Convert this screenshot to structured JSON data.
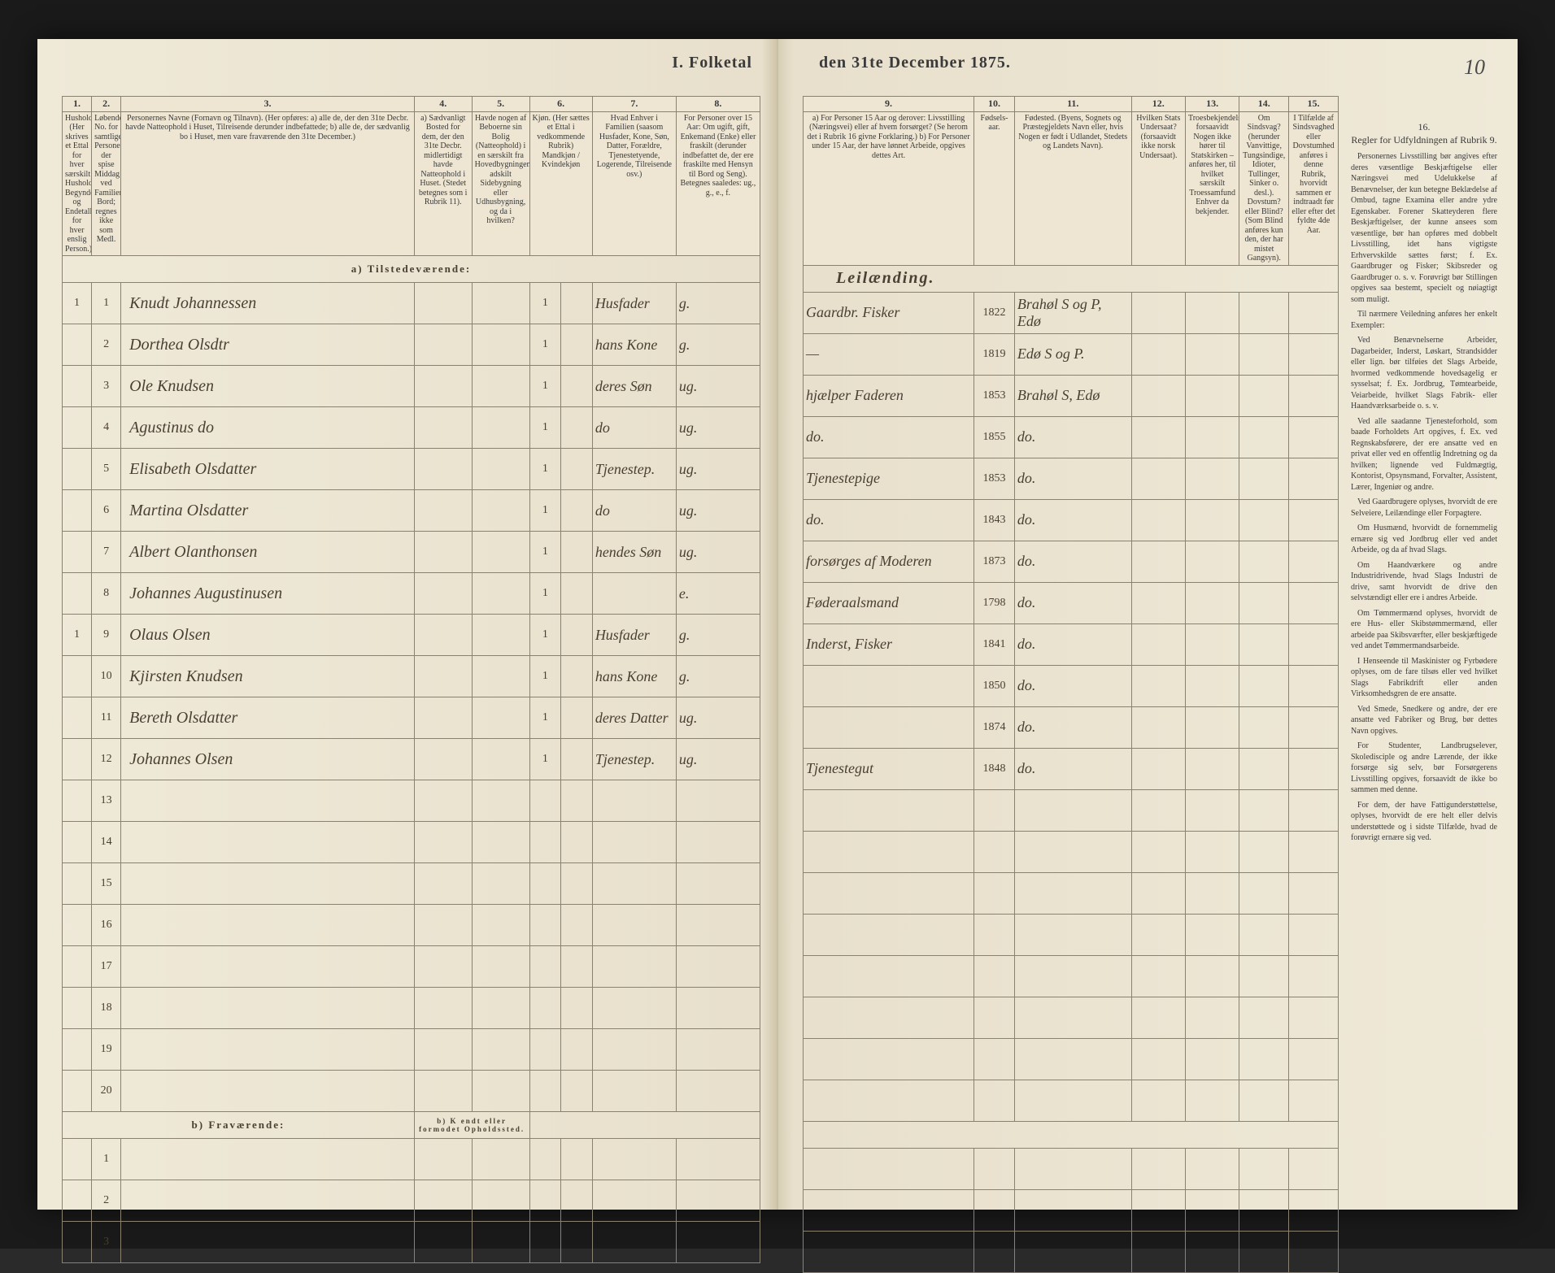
{
  "page_number_handwritten": "10",
  "title_left": "I.  Folketal",
  "title_right": "den 31te December 1875.",
  "colors": {
    "paper": "#efe9d8",
    "ink_print": "#3a3a3a",
    "ink_script": "#4a3f33",
    "rule": "#8a8270",
    "bg": "#2a2a2a"
  },
  "typography": {
    "header_font": "Georgia, Times New Roman, serif",
    "script_font": "cursive",
    "title_size_pt": 20,
    "header_text_size_pt": 10,
    "cell_script_size_pt": 18
  },
  "left_columns": [
    {
      "num": "1.",
      "label": "Husholdninger. (Her skrives et Ettal for hver særskilt Husholdning; Begyndelses- og Endetallet for hver enslig Person.)"
    },
    {
      "num": "2.",
      "label": "Løbende No. for samtlige Personer der spise Middag ved Familiens Bord; regnes ikke som Medl."
    },
    {
      "num": "3.",
      "label": "Personernes Navne (Fornavn og Tilnavn). (Her opføres: a) alle de, der den 31te Decbr. havde Natteophold i Huset, Tilreisende derunder indbefattede; b) alle de, der sædvanlig bo i Huset, men vare fraværende den 31te December.)"
    },
    {
      "num": "4.",
      "label": "a) Sædvanligt Bosted for dem, der den 31te Decbr. midlertidigt havde Natteophold i Huset. (Stedet betegnes som i Rubrik 11)."
    },
    {
      "num": "5.",
      "label": "Havde nogen af Beboerne sin Bolig (Natteophold) i en særskilt fra Hovedbygningen adskilt Sidebygning eller Udhusbygning, og da i hvilken?"
    },
    {
      "num": "6.",
      "label": "Kjøn. (Her sættes et Ettal i vedkommende Rubrik) Mandkjøn / Kvindekjøn"
    },
    {
      "num": "7.",
      "label": "Hvad Enhver i Familien (saasom Husfader, Kone, Søn, Datter, Forældre, Tjenestetyende, Logerende, Tilreisende osv.)"
    },
    {
      "num": "8.",
      "label": "For Personer over 15 Aar: Om ugift, gift, Enkemand (Enke) eller fraskilt (derunder indbefattet de, der ere fraskilte med Hensyn til Bord og Seng). Betegnes saaledes: ug., g., e., f."
    }
  ],
  "right_columns": [
    {
      "num": "9.",
      "label": "a) For Personer 15 Aar og derover: Livsstilling (Næringsvei) eller af hvem forsørget? (Se herom det i Rubrik 16 givne Forklaring.) b) For Personer under 15 Aar, der have lønnet Arbeide, opgives dettes Art."
    },
    {
      "num": "10.",
      "label": "Fødsels-aar."
    },
    {
      "num": "11.",
      "label": "Fødested. (Byens, Sognets og Præstegjeldets Navn eller, hvis Nogen er født i Udlandet, Stedets og Landets Navn)."
    },
    {
      "num": "12.",
      "label": "Hvilken Stats Undersaat? (forsaavidt ikke norsk Undersaat)."
    },
    {
      "num": "13.",
      "label": "Troesbekjendelse, forsaavidt Nogen ikke hører til Statskirken – anføres her, til hvilket særskilt Troessamfund Enhver da bekjender."
    },
    {
      "num": "14.",
      "label": "Om Sindsvag? (herunder Vanvittige, Tungsindige, Idioter, Tullinger, Sinker o. desl.). Dovstum? eller Blind? (Som Blind anføres kun den, der har mistet Gangsyn)."
    },
    {
      "num": "15.",
      "label": "I Tilfælde af Sindsvaghed eller Dovstumhed anføres i denne Rubrik, hvorvidt sammen er indtraadt før eller efter det fyldte 4de Aar."
    }
  ],
  "right_rules_heading": {
    "num": "16.",
    "label": "Regler for Udfyldningen af Rubrik 9."
  },
  "section_a": "a)  Tilstedeværende:",
  "section_b": "b)  Fraværende:",
  "section_b_note": "b) K endt eller formodet Opholdssted.",
  "top_script_note": "Leilænding.",
  "rows": [
    {
      "hh": "1",
      "no": "1",
      "name": "Knudt Johannessen",
      "c4": "",
      "c5": "",
      "sex": "1",
      "rel": "Husfader",
      "civ": "g.",
      "occ": "Gaardbr. Fisker",
      "year": "1822",
      "birthplace": "Brahøl S og P, Edø"
    },
    {
      "hh": "",
      "no": "2",
      "name": "Dorthea Olsdtr",
      "c4": "",
      "c5": "",
      "sex": "1",
      "rel": "hans Kone",
      "civ": "g.",
      "occ": "—",
      "year": "1819",
      "birthplace": "Edø S og P."
    },
    {
      "hh": "",
      "no": "3",
      "name": "Ole Knudsen",
      "c4": "",
      "c5": "",
      "sex": "1",
      "rel": "deres Søn",
      "civ": "ug.",
      "occ": "hjælper Faderen",
      "year": "1853",
      "birthplace": "Brahøl S, Edø"
    },
    {
      "hh": "",
      "no": "4",
      "name": "Agustinus  do",
      "c4": "",
      "c5": "",
      "sex": "1",
      "rel": "do",
      "civ": "ug.",
      "occ": "do.",
      "year": "1855",
      "birthplace": "do."
    },
    {
      "hh": "",
      "no": "5",
      "name": "Elisabeth Olsdatter",
      "c4": "",
      "c5": "",
      "sex": "1",
      "rel": "Tjenestep.",
      "civ": "ug.",
      "occ": "Tjenestepige",
      "year": "1853",
      "birthplace": "do."
    },
    {
      "hh": "",
      "no": "6",
      "name": "Martina Olsdatter",
      "c4": "",
      "c5": "",
      "sex": "1",
      "rel": "do",
      "civ": "ug.",
      "occ": "do.",
      "year": "1843",
      "birthplace": "do."
    },
    {
      "hh": "",
      "no": "7",
      "name": "Albert Olanthonsen",
      "c4": "",
      "c5": "",
      "sex": "1",
      "rel": "hendes Søn",
      "civ": "ug.",
      "occ": "forsørges af Moderen",
      "year": "1873",
      "birthplace": "do."
    },
    {
      "hh": "",
      "no": "8",
      "name": "Johannes Augustinusen",
      "c4": "",
      "c5": "",
      "sex": "1",
      "rel": "",
      "civ": "e.",
      "occ": "Føderaalsmand",
      "year": "1798",
      "birthplace": "do."
    },
    {
      "hh": "1",
      "no": "9",
      "name": "Olaus Olsen",
      "c4": "",
      "c5": "",
      "sex": "1",
      "rel": "Husfader",
      "civ": "g.",
      "occ": "Inderst, Fisker",
      "year": "1841",
      "birthplace": "do."
    },
    {
      "hh": "",
      "no": "10",
      "name": "Kjirsten Knudsen",
      "c4": "",
      "c5": "",
      "sex": "1",
      "rel": "hans Kone",
      "civ": "g.",
      "occ": "",
      "year": "1850",
      "birthplace": "do."
    },
    {
      "hh": "",
      "no": "11",
      "name": "Bereth Olsdatter",
      "c4": "",
      "c5": "",
      "sex": "1",
      "rel": "deres Datter",
      "civ": "ug.",
      "occ": "",
      "year": "1874",
      "birthplace": "do."
    },
    {
      "hh": "",
      "no": "12",
      "name": "Johannes Olsen",
      "c4": "",
      "c5": "",
      "sex": "1",
      "rel": "Tjenestep.",
      "civ": "ug.",
      "occ": "Tjenestegut",
      "year": "1848",
      "birthplace": "do."
    }
  ],
  "empty_left_rows": [
    "13",
    "14",
    "15",
    "16",
    "17",
    "18",
    "19",
    "20"
  ],
  "empty_b_rows": [
    "1",
    "2",
    "3"
  ],
  "rules_text": [
    "Personernes Livsstilling bør angives efter deres væsentlige Beskjæftigelse eller Næringsvei med Udelukkelse af Benævnelser, der kun betegne Beklædelse af Ombud, tagne Examina eller andre ydre Egenskaber. Forener Skatteyderen flere Beskjæftigelser, der kunne ansees som væsentlige, bør han opføres med dobbelt Livsstilling, idet hans vigtigste Erhvervskilde sættes først; f. Ex. Gaardbruger og Fisker; Skibsreder og Gaardbruger o. s. v. Forøvrigt bør Stillingen opgives saa bestemt, specielt og nøiagtigt som muligt.",
    "Til nærmere Veiledning anføres her enkelt Exempler:",
    "Ved Benævnelserne Arbeider, Dagarbeider, Inderst, Løskart, Strandsidder eller lign. bør tilføies det Slags Arbeide, hvormed vedkommende hovedsagelig er sysselsat; f. Ex. Jordbrug, Tømtearbeide, Veiarbeide, hvilket Slags Fabrik- eller Haandværksarbeide o. s. v.",
    "Ved alle saadanne Tjenesteforhold, som baade Forholdets Art opgives, f. Ex. ved Regnskabsførere, der ere ansatte ved en privat eller ved en offentlig Indretning og da hvilken; lignende ved Fuldmægtig, Kontorist, Opsynsmand, Forvalter, Assistent, Lærer, Ingeniør og andre.",
    "Ved Gaardbrugere oplyses, hvorvidt de ere Selveiere, Leilændinge eller Forpagtere.",
    "Om Husmænd, hvorvidt de fornemmelig ernære sig ved Jordbrug eller ved andet Arbeide, og da af hvad Slags.",
    "Om Haandværkere og andre Industridrivende, hvad Slags Industri de drive, samt hvorvidt de drive den selvstændigt eller ere i andres Arbeide.",
    "Om Tømmermænd oplyses, hvorvidt de ere Hus- eller Skibstømmermænd, eller arbeide paa Skibsværfter, eller beskjæftigede ved andet Tømmermandsarbeide.",
    "I Henseende til Maskinister og Fyrbødere oplyses, om de fare tilsøs eller ved hvilket Slags Fabrikdrift eller anden Virksomhedsgren de ere ansatte.",
    "Ved Smede, Snedkere og andre, der ere ansatte ved Fabriker og Brug, bør dettes Navn opgives.",
    "For Studenter, Landbrugselever, Skoledisciple og andre Lærende, der ikke forsørge sig selv, bør Forsørgerens Livsstilling opgives, forsaavidt de ikke bo sammen med denne.",
    "For dem, der have Fattigunderstøttelse, oplyses, hvorvidt de ere helt eller delvis understøttede og i sidste Tilfælde, hvad de forøvrigt ernære sig ved."
  ]
}
